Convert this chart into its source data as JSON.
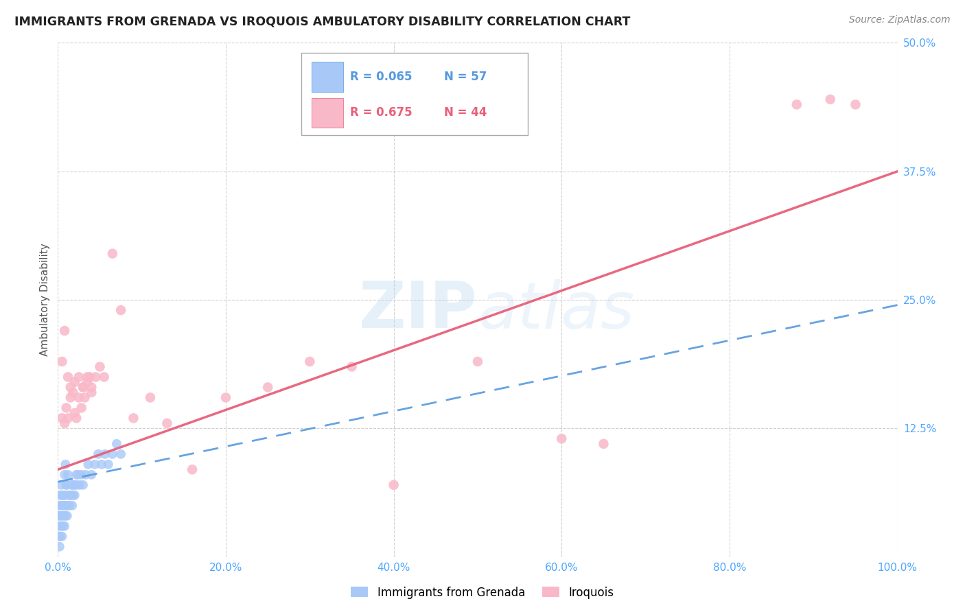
{
  "title": "IMMIGRANTS FROM GRENADA VS IROQUOIS AMBULATORY DISABILITY CORRELATION CHART",
  "source": "Source: ZipAtlas.com",
  "ylabel": "Ambulatory Disability",
  "legend_label1": "Immigrants from Grenada",
  "legend_label2": "Iroquois",
  "r1": "0.065",
  "n1": "57",
  "r2": "0.675",
  "n2": "44",
  "color1": "#a8c8f8",
  "color2": "#f9b8c8",
  "trendline1_color": "#5599dd",
  "trendline2_color": "#e8607a",
  "axis_tick_color": "#4da6ff",
  "background_color": "#ffffff",
  "grid_color": "#cccccc",
  "watermark_text": "ZIPatlas",
  "xlim": [
    0.0,
    1.0
  ],
  "ylim": [
    0.0,
    0.5
  ],
  "xticks": [
    0.0,
    0.2,
    0.4,
    0.6,
    0.8,
    1.0
  ],
  "yticks": [
    0.125,
    0.25,
    0.375,
    0.5
  ],
  "xtick_labels": [
    "0.0%",
    "20.0%",
    "40.0%",
    "60.0%",
    "80.0%",
    "100.0%"
  ],
  "ytick_labels": [
    "12.5%",
    "25.0%",
    "37.5%",
    "50.0%"
  ],
  "blue_x": [
    0.001,
    0.001,
    0.002,
    0.002,
    0.002,
    0.003,
    0.003,
    0.003,
    0.004,
    0.004,
    0.004,
    0.005,
    0.005,
    0.005,
    0.006,
    0.006,
    0.007,
    0.007,
    0.008,
    0.008,
    0.009,
    0.009,
    0.01,
    0.01,
    0.011,
    0.012,
    0.013,
    0.014,
    0.015,
    0.016,
    0.017,
    0.018,
    0.019,
    0.02,
    0.022,
    0.024,
    0.026,
    0.028,
    0.03,
    0.033,
    0.036,
    0.04,
    0.044,
    0.048,
    0.052,
    0.056,
    0.06,
    0.065,
    0.07,
    0.075,
    0.008,
    0.009,
    0.01,
    0.012,
    0.015,
    0.018,
    0.022
  ],
  "blue_y": [
    0.02,
    0.04,
    0.01,
    0.03,
    0.05,
    0.02,
    0.04,
    0.06,
    0.03,
    0.05,
    0.07,
    0.02,
    0.04,
    0.06,
    0.03,
    0.05,
    0.04,
    0.06,
    0.03,
    0.05,
    0.04,
    0.06,
    0.05,
    0.07,
    0.04,
    0.05,
    0.06,
    0.05,
    0.06,
    0.07,
    0.05,
    0.06,
    0.07,
    0.06,
    0.07,
    0.08,
    0.07,
    0.08,
    0.07,
    0.08,
    0.09,
    0.08,
    0.09,
    0.1,
    0.09,
    0.1,
    0.09,
    0.1,
    0.11,
    0.1,
    0.08,
    0.09,
    0.07,
    0.08,
    0.06,
    0.07,
    0.08
  ],
  "pink_x": [
    0.005,
    0.008,
    0.01,
    0.012,
    0.015,
    0.018,
    0.02,
    0.022,
    0.025,
    0.028,
    0.03,
    0.032,
    0.035,
    0.038,
    0.04,
    0.005,
    0.008,
    0.012,
    0.015,
    0.02,
    0.025,
    0.03,
    0.035,
    0.04,
    0.045,
    0.05,
    0.055,
    0.065,
    0.075,
    0.09,
    0.11,
    0.13,
    0.16,
    0.2,
    0.25,
    0.3,
    0.35,
    0.4,
    0.5,
    0.6,
    0.65,
    0.88,
    0.92,
    0.95
  ],
  "pink_y": [
    0.135,
    0.13,
    0.145,
    0.135,
    0.155,
    0.16,
    0.14,
    0.135,
    0.155,
    0.145,
    0.165,
    0.155,
    0.17,
    0.175,
    0.16,
    0.19,
    0.22,
    0.175,
    0.165,
    0.17,
    0.175,
    0.165,
    0.175,
    0.165,
    0.175,
    0.185,
    0.175,
    0.295,
    0.24,
    0.135,
    0.155,
    0.13,
    0.085,
    0.155,
    0.165,
    0.19,
    0.185,
    0.07,
    0.19,
    0.115,
    0.11,
    0.44,
    0.445,
    0.44
  ],
  "trendline1_x0": 0.0,
  "trendline1_y0": 0.073,
  "trendline1_x1": 1.0,
  "trendline1_y1": 0.245,
  "trendline2_x0": 0.0,
  "trendline2_y0": 0.085,
  "trendline2_x1": 1.0,
  "trendline2_y1": 0.375
}
